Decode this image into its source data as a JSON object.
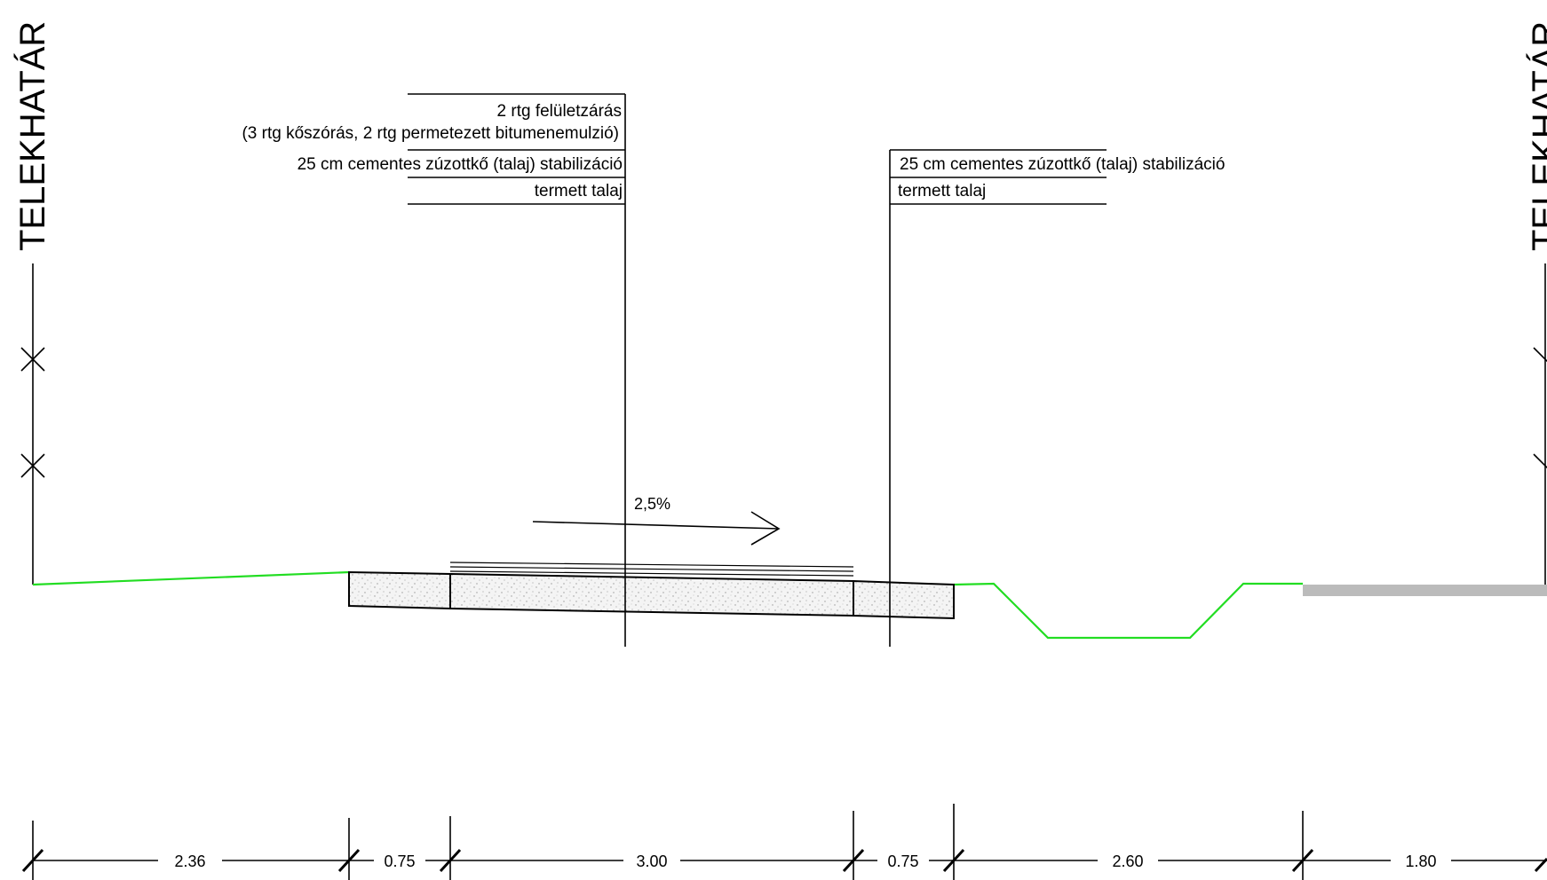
{
  "border_labels": {
    "left": "TELEKHATÁR",
    "right": "TELEKHATÁR"
  },
  "callouts": {
    "left": {
      "line1": "2 rtg felületzárás",
      "line2": "(3 rtg kőszórás, 2 rtg permetezett bitumenemulzió)",
      "line3": "25 cm cementes zúzottkő (talaj) stabilizáció",
      "line4": "termett talaj"
    },
    "right": {
      "line1": "25 cm cementes zúzottkő (talaj) stabilizáció",
      "line2": "termett talaj"
    }
  },
  "slope": {
    "value": "2,5%",
    "direction": "right"
  },
  "dimensions": [
    "2.36",
    "0.75",
    "3.00",
    "0.75",
    "2.60",
    "1.80"
  ],
  "colors": {
    "ground_line": "#22dd22",
    "existing_pavement": "#bbbbbb",
    "lines": "#000000"
  }
}
